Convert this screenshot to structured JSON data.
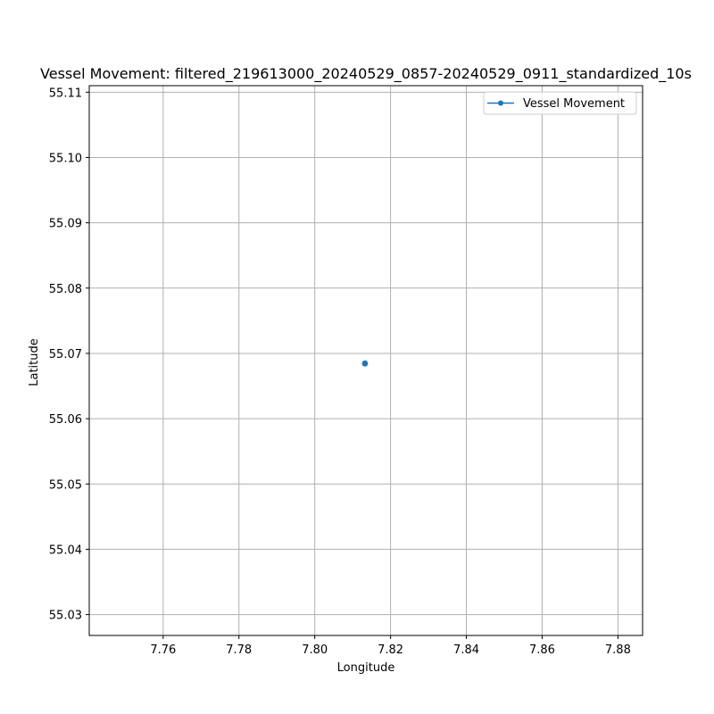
{
  "chart_data": {
    "type": "line",
    "title": "Vessel Movement: filtered_219613000_20240529_0857-20240529_0911_standardized_10s",
    "xlabel": "Longitude",
    "ylabel": "Latitude",
    "xlim": [
      7.7405,
      7.8865
    ],
    "ylim": [
      55.0268,
      55.111
    ],
    "xticks": [
      7.76,
      7.78,
      7.8,
      7.82,
      7.84,
      7.86,
      7.88
    ],
    "xtick_labels": [
      "7.76",
      "7.78",
      "7.80",
      "7.82",
      "7.84",
      "7.86",
      "7.88"
    ],
    "yticks": [
      55.03,
      55.04,
      55.05,
      55.06,
      55.07,
      55.08,
      55.09,
      55.1,
      55.11
    ],
    "ytick_labels": [
      "55.03",
      "55.04",
      "55.05",
      "55.06",
      "55.07",
      "55.08",
      "55.09",
      "55.10",
      "55.11"
    ],
    "grid": true,
    "legend_position": "top-right",
    "series": [
      {
        "name": "Vessel Movement",
        "color": "#1f77b4",
        "marker": "circle",
        "x": [
          7.8132,
          7.8132,
          7.8133,
          7.8133,
          7.8132
        ],
        "y": [
          55.0684,
          55.0685,
          55.0684,
          55.0685,
          55.0684
        ]
      }
    ]
  }
}
